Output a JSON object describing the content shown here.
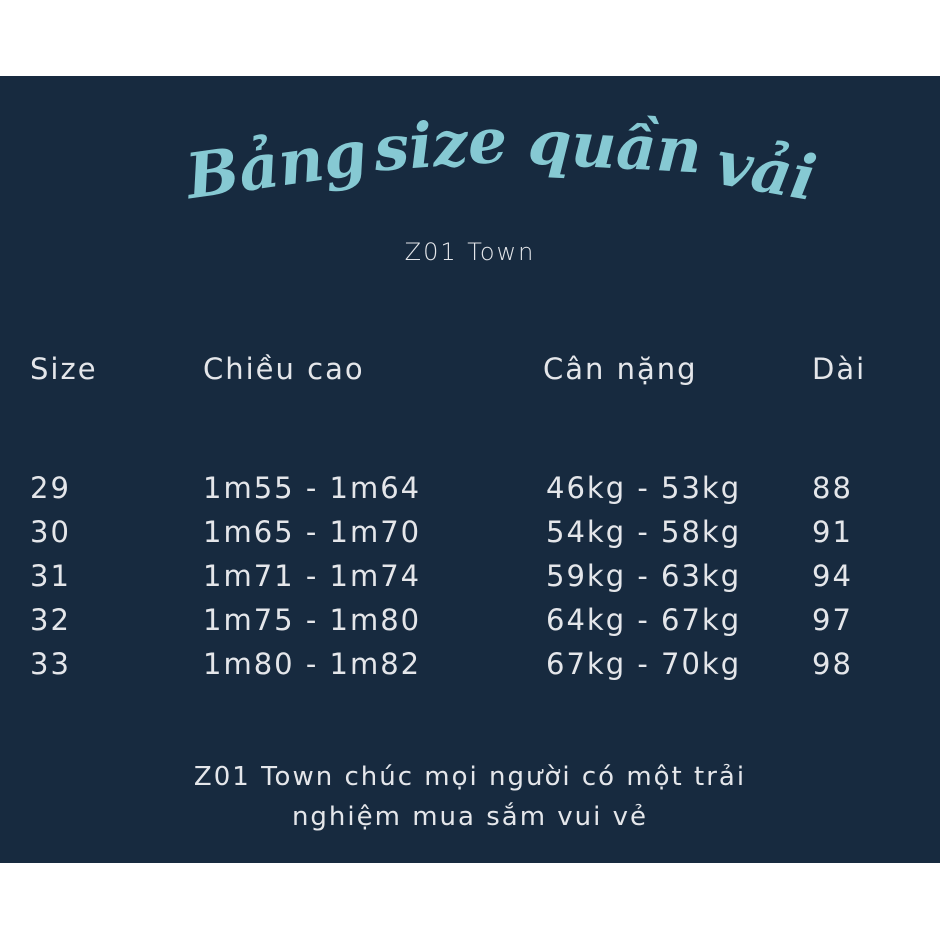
{
  "title_words": [
    "Bảng",
    "size",
    "quần",
    "vải"
  ],
  "colors": {
    "background": "#172a3f",
    "title": "#86c9d3",
    "text": "#e4e6ea"
  },
  "subtitle": "Z01 Town",
  "table": {
    "headers": [
      "Size",
      "Chiều cao",
      "Cân nặng",
      "Dài"
    ],
    "rows": [
      [
        "29",
        "1m55 - 1m64",
        "46kg - 53kg",
        "88"
      ],
      [
        "30",
        "1m65 - 1m70",
        "54kg - 58kg",
        "91"
      ],
      [
        "31",
        "1m71 - 1m74",
        "59kg - 63kg",
        "94"
      ],
      [
        "32",
        "1m75 - 1m80",
        "64kg - 67kg",
        "97"
      ],
      [
        "33",
        "1m80 - 1m82",
        "67kg - 70kg",
        "98"
      ]
    ]
  },
  "footer": {
    "line1": "Z01 Town chúc mọi người có một trải",
    "line2": "nghiệm mua sắm vui vẻ"
  }
}
